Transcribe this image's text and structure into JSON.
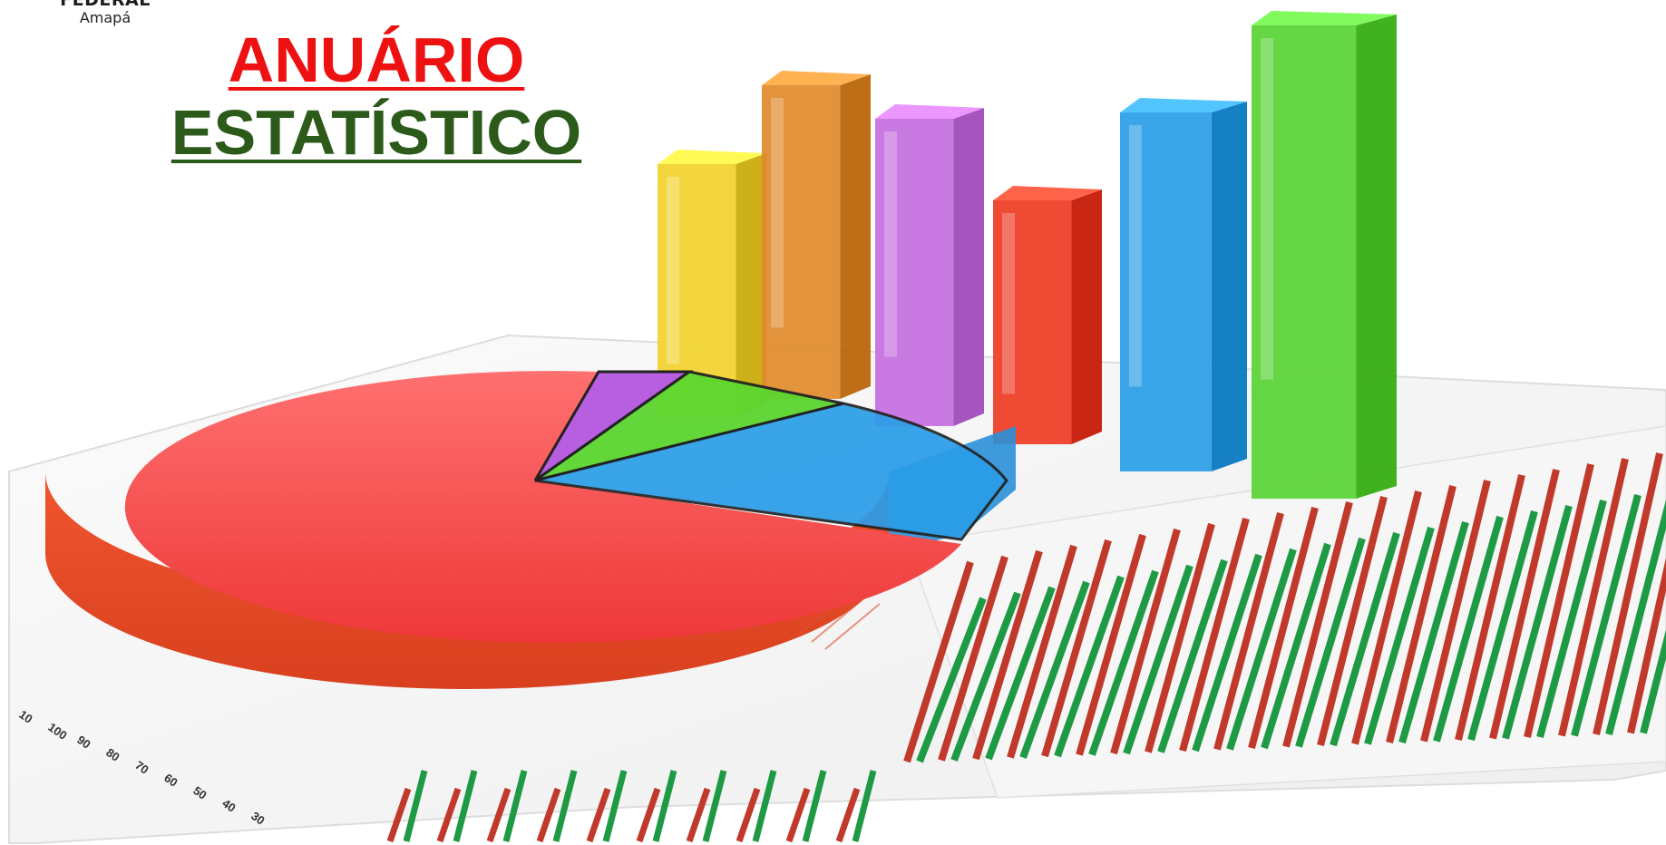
{
  "header": {
    "logo": {
      "org_text": "FEDERAL",
      "campus_text": "Amapá"
    },
    "title": {
      "line1": "ANUÁRIO",
      "line2": "ESTATÍSTICO",
      "line1_color": "#ee1111",
      "line2_color": "#2c5a1a"
    }
  },
  "illustration": {
    "bar_colors": [
      "#f2d22e",
      "#e08a2a",
      "#c46ee0",
      "#ee3b22",
      "#2a9de8",
      "#58d234"
    ],
    "pie_colors": [
      "#f24848",
      "#b85ee0",
      "#5cd630",
      "#2a9de8"
    ],
    "axis_tick_labels": [
      "10",
      "100",
      "90",
      "80",
      "70",
      "60",
      "50",
      "40",
      "30"
    ],
    "stripe_colors": [
      "#c0392b",
      "#1e9a45"
    ]
  }
}
